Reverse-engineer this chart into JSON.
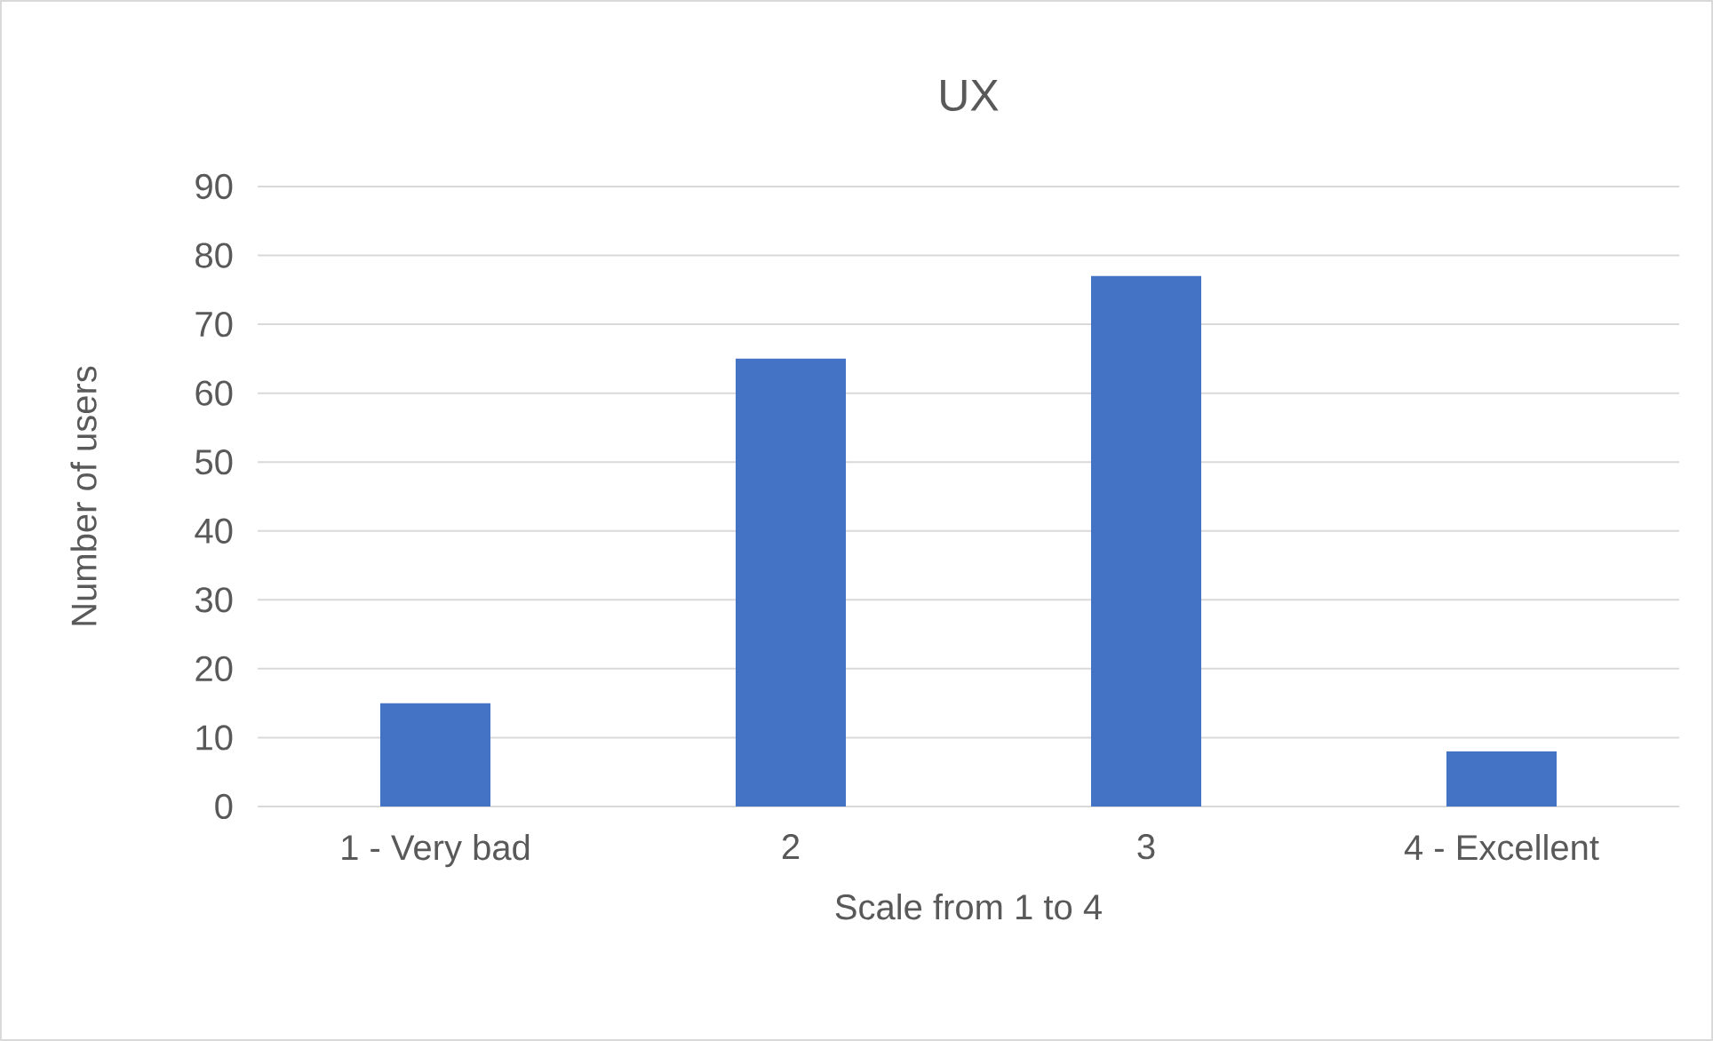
{
  "chart_data": {
    "type": "bar",
    "title": "UX",
    "xlabel": "Scale from 1 to 4",
    "ylabel": "Number of users",
    "categories": [
      "1 - Very bad",
      "2",
      "3",
      "4 - Excellent"
    ],
    "values": [
      15,
      65,
      77,
      8
    ],
    "color": "#4472c4",
    "ylim": [
      0,
      90
    ],
    "yticks": [
      0,
      10,
      20,
      30,
      40,
      50,
      60,
      70,
      80,
      90
    ],
    "grid": "y"
  }
}
